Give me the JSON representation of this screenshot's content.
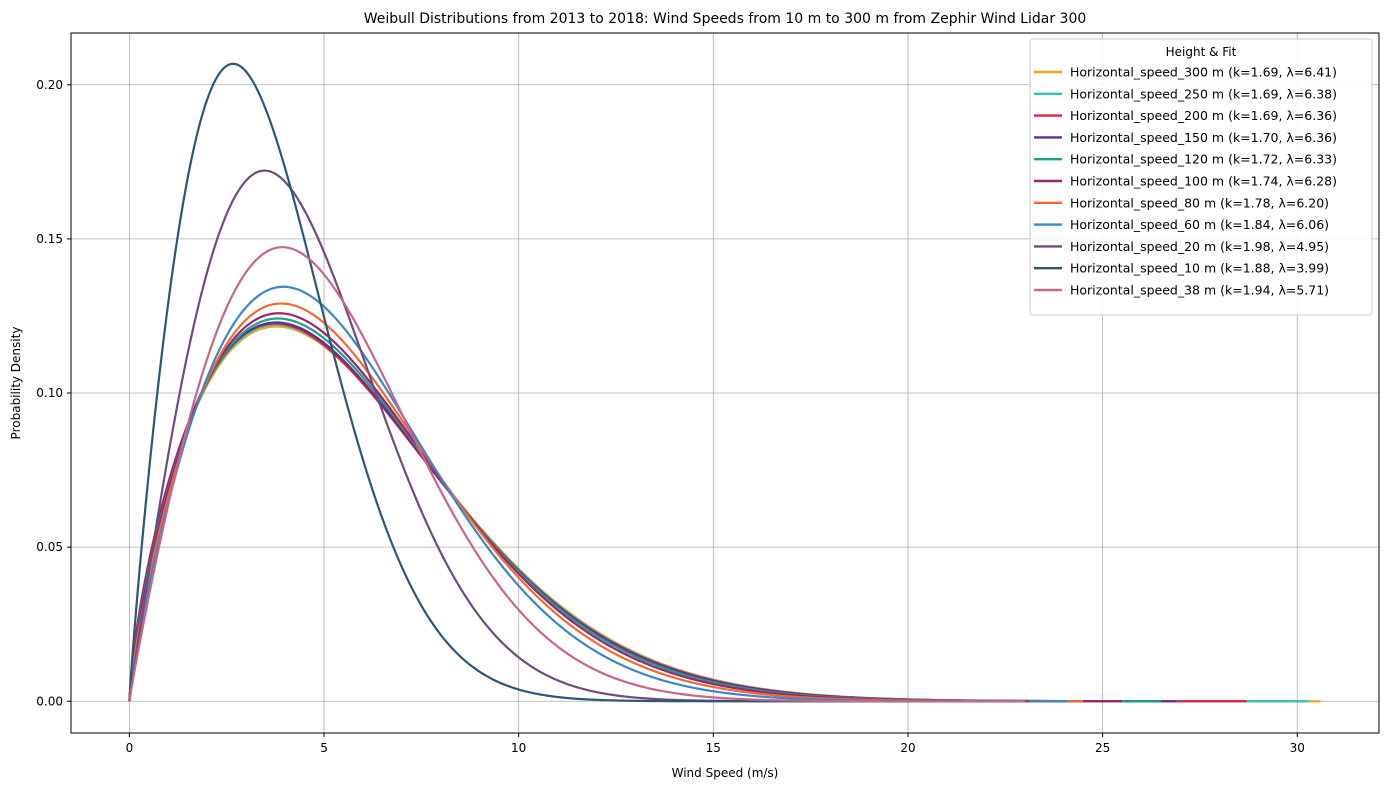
{
  "chart_data": {
    "type": "line",
    "title": "Weibull Distributions from 2013 to 2018: Wind Speeds from 10 m to 300 m from Zephir Wind Lidar 300",
    "xlabel": "Wind Speed (m/s)",
    "ylabel": "Probability Density",
    "xlim": [
      -1.5,
      32.1
    ],
    "ylim": [
      -0.0103,
      0.2168
    ],
    "xticks": [
      0,
      5,
      10,
      15,
      20,
      25,
      30
    ],
    "xtick_labels": [
      "0",
      "5",
      "10",
      "15",
      "20",
      "25",
      "30"
    ],
    "yticks": [
      0.0,
      0.05,
      0.1,
      0.15,
      0.2
    ],
    "ytick_labels": [
      "0.00",
      "0.05",
      "0.10",
      "0.15",
      "0.20"
    ],
    "grid": true,
    "legend_title": "Height & Fit",
    "legend_position": "top-right",
    "series": [
      {
        "name": "Horizontal_speed_300 m (k=1.69, λ=6.41)",
        "k": 1.69,
        "lambda": 6.41,
        "x_max": 30.6,
        "color": "#f5a623"
      },
      {
        "name": "Horizontal_speed_250 m (k=1.69, λ=6.38)",
        "k": 1.69,
        "lambda": 6.38,
        "x_max": 30.3,
        "color": "#2ec4b6"
      },
      {
        "name": "Horizontal_speed_200 m (k=1.69, λ=6.36)",
        "k": 1.69,
        "lambda": 6.36,
        "x_max": 28.7,
        "color": "#e0213c"
      },
      {
        "name": "Horizontal_speed_150 m (k=1.70, λ=6.36)",
        "k": 1.7,
        "lambda": 6.36,
        "x_max": 26.9,
        "color": "#6a2c91"
      },
      {
        "name": "Horizontal_speed_120 m (k=1.72, λ=6.33)",
        "k": 1.72,
        "lambda": 6.33,
        "x_max": 26.5,
        "color": "#17a589"
      },
      {
        "name": "Horizontal_speed_100 m (k=1.74, λ=6.28)",
        "k": 1.74,
        "lambda": 6.28,
        "x_max": 25.5,
        "color": "#a3226e"
      },
      {
        "name": "Horizontal_speed_80 m (k=1.78, λ=6.20)",
        "k": 1.78,
        "lambda": 6.2,
        "x_max": 24.5,
        "color": "#ef6c2f"
      },
      {
        "name": "Horizontal_speed_60 m (k=1.84, λ=6.06)",
        "k": 1.84,
        "lambda": 6.06,
        "x_max": 24.1,
        "color": "#3a87c8"
      },
      {
        "name": "Horizontal_speed_20 m (k=1.98, λ=4.95)",
        "k": 1.98,
        "lambda": 4.95,
        "x_max": 23.1,
        "color": "#6e4c7e"
      },
      {
        "name": "Horizontal_speed_10 m (k=1.88, λ=3.99)",
        "k": 1.88,
        "lambda": 3.99,
        "x_max": 22.5,
        "color": "#2e5678"
      },
      {
        "name": "Horizontal_speed_38 m (k=1.94, λ=5.71)",
        "k": 1.94,
        "lambda": 5.71,
        "x_max": 23.0,
        "color": "#c8668a"
      }
    ]
  }
}
